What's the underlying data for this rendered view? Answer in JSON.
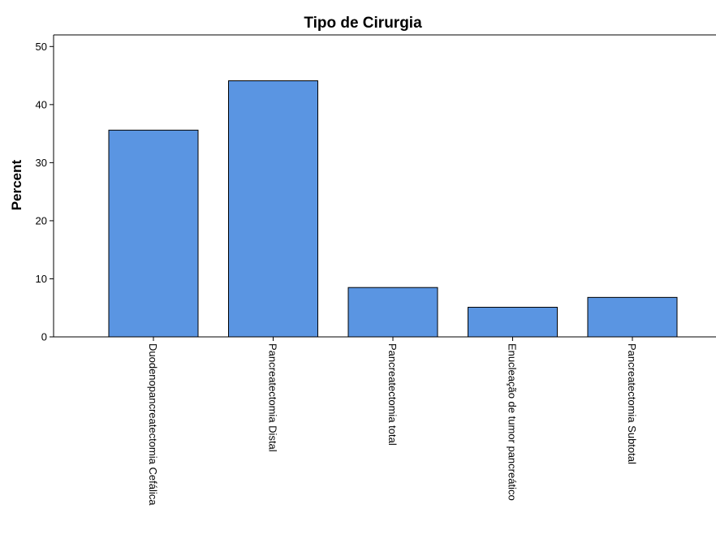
{
  "chart_data": {
    "type": "bar",
    "title": "Tipo de Cirurgia",
    "ylabel": "Percent",
    "xlabel": "",
    "ylim": [
      0,
      52
    ],
    "yticks": [
      0,
      10,
      20,
      30,
      40,
      50
    ],
    "categories": [
      "Duodenopancreatectomia Cefálica",
      "Pancreatectomia Distal",
      "Pancreatectomia total",
      "Enucleação de tumor pancreático",
      "Pancreatectomia Subtotal"
    ],
    "values": [
      35.6,
      44.1,
      8.5,
      5.1,
      6.8
    ],
    "grid": false,
    "legend": "none",
    "colors": {
      "bar": "#5a95e2",
      "border": "#000000"
    }
  }
}
